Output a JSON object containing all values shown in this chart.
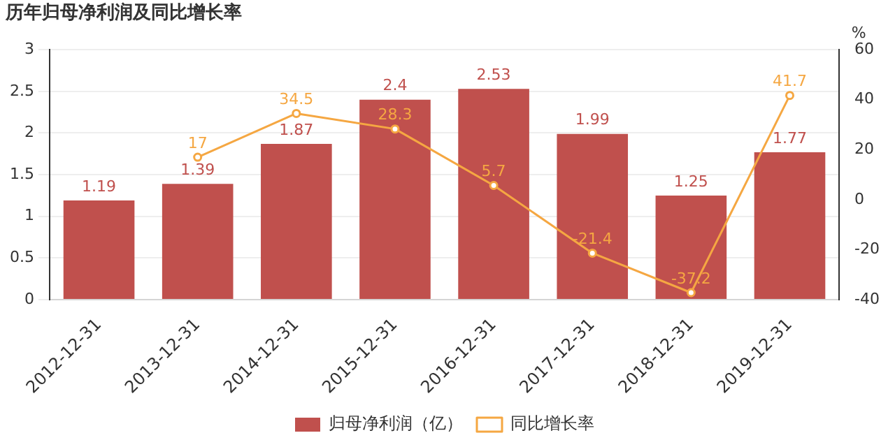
{
  "chart_data": {
    "type": "bar",
    "title": "历年归母净利润及同比增长率",
    "categories": [
      "2012-12-31",
      "2013-12-31",
      "2014-12-31",
      "2015-12-31",
      "2016-12-31",
      "2017-12-31",
      "2018-12-31",
      "2019-12-31"
    ],
    "series": [
      {
        "name": "归母净利润（亿）",
        "color": "#c0504d",
        "values": [
          1.19,
          1.39,
          1.87,
          2.4,
          2.53,
          1.99,
          1.25,
          1.77
        ]
      },
      {
        "name": "同比增长率",
        "type": "line",
        "axis": "y2",
        "color": "#f5a742",
        "values": [
          null,
          17,
          34.5,
          28.3,
          5.7,
          -21.4,
          -37.2,
          41.7
        ]
      }
    ],
    "ylim": [
      0,
      3
    ],
    "yticks": [
      0,
      0.5,
      1,
      1.5,
      2,
      2.5,
      3
    ],
    "y2lim": [
      -40,
      60
    ],
    "y2ticks": [
      -40,
      -20,
      0,
      20,
      40,
      60
    ],
    "y2label": "%",
    "grid": "y",
    "legend": "bottom",
    "marker": "circle",
    "line_style": "solid",
    "data_labels": true
  }
}
